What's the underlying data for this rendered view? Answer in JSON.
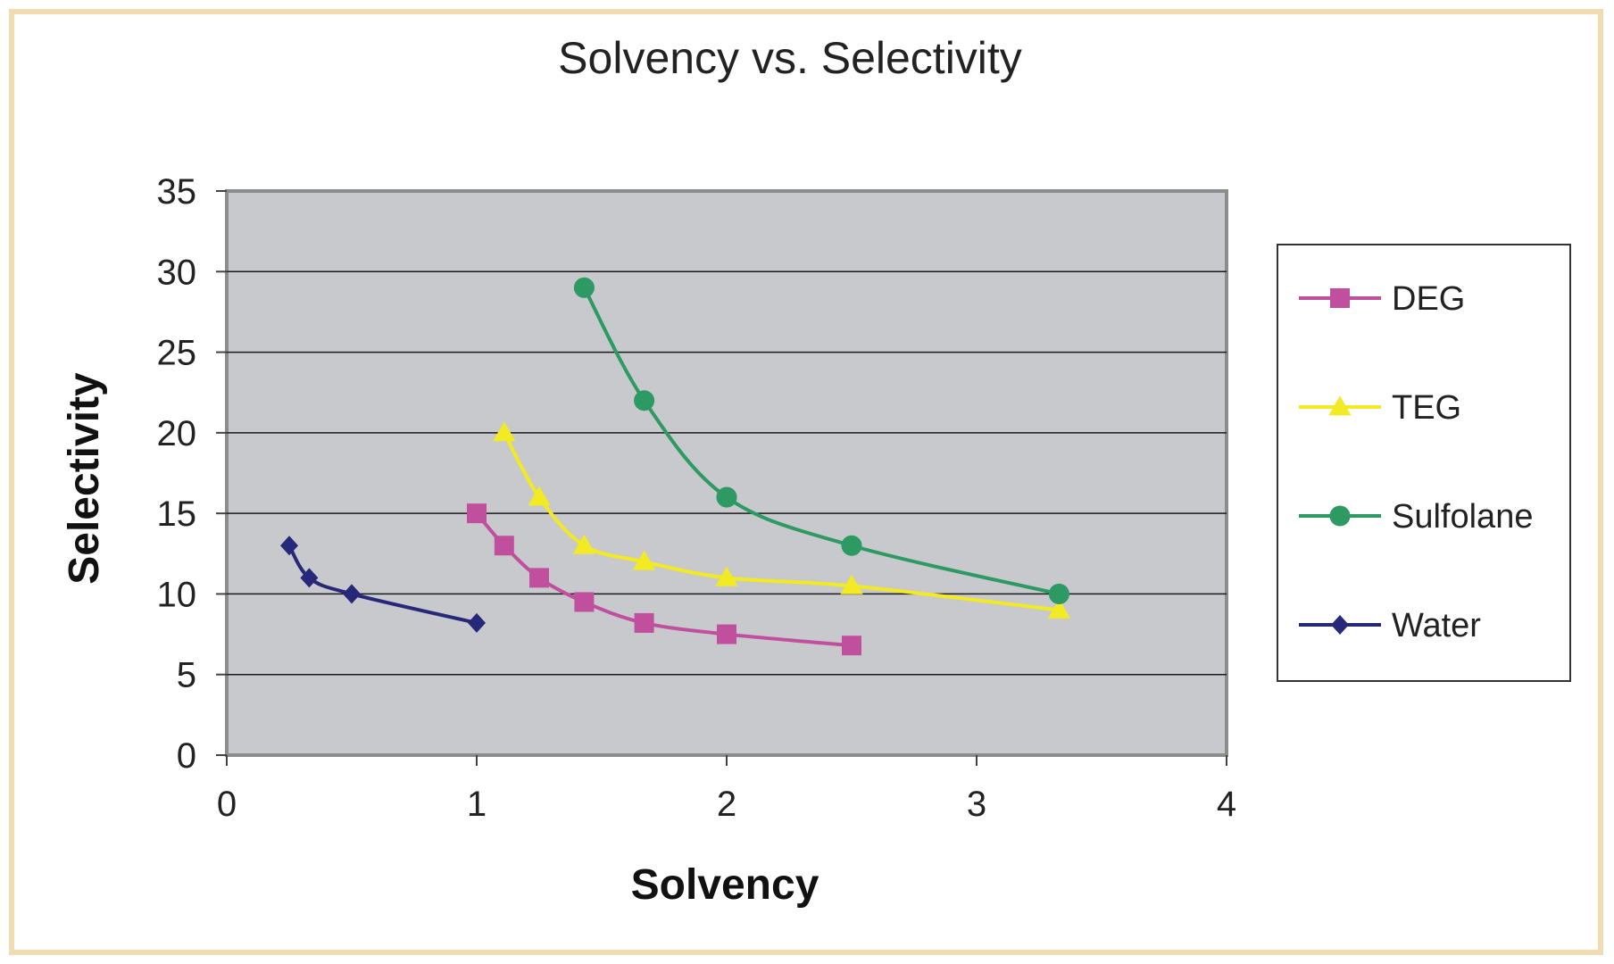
{
  "chart_data": {
    "type": "line",
    "title": "Solvency vs. Selectivity",
    "xlabel": "Solvency",
    "ylabel": "Selectivity",
    "xlim": [
      0,
      4
    ],
    "ylim": [
      0,
      35
    ],
    "xticks": [
      "0",
      "1",
      "2",
      "3",
      "4"
    ],
    "yticks": [
      "0",
      "5",
      "10",
      "15",
      "20",
      "25",
      "30",
      "35"
    ],
    "grid": true,
    "legend_position": "right",
    "plot_background": "#c8c9cc",
    "series": [
      {
        "name": "DEG",
        "color": "#c0509d",
        "marker": "square",
        "points": [
          [
            1.0,
            15
          ],
          [
            1.11,
            13
          ],
          [
            1.25,
            11
          ],
          [
            1.43,
            9.5
          ],
          [
            1.67,
            8.2
          ],
          [
            2.0,
            7.5
          ],
          [
            2.5,
            6.8
          ]
        ]
      },
      {
        "name": "TEG",
        "color": "#f2ea22",
        "marker": "triangle",
        "points": [
          [
            1.11,
            20
          ],
          [
            1.25,
            16
          ],
          [
            1.43,
            13
          ],
          [
            1.67,
            12
          ],
          [
            2.0,
            11
          ],
          [
            2.5,
            10.5
          ],
          [
            3.33,
            9
          ]
        ]
      },
      {
        "name": "Sulfolane",
        "color": "#2e9a63",
        "marker": "circle",
        "points": [
          [
            1.43,
            29
          ],
          [
            1.67,
            22
          ],
          [
            2.0,
            16
          ],
          [
            2.5,
            13
          ],
          [
            3.33,
            10
          ]
        ]
      },
      {
        "name": "Water",
        "color": "#27287a",
        "marker": "diamond",
        "points": [
          [
            0.25,
            13
          ],
          [
            0.33,
            11
          ],
          [
            0.5,
            10
          ],
          [
            1.0,
            8.2
          ]
        ]
      }
    ]
  }
}
